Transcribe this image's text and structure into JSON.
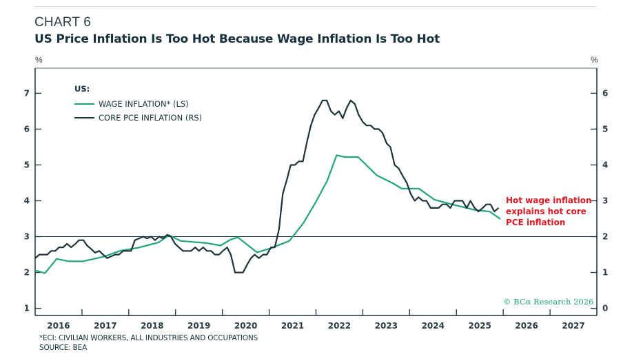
{
  "header": {
    "chart_number": "CHART 6",
    "title": "US Price Inflation Is Too Hot Because Wage Inflation Is Too Hot"
  },
  "axes": {
    "left_unit": "%",
    "right_unit": "%"
  },
  "footnotes": {
    "note": "*ECI: CIVILIAN WORKERS, ALL INDUSTRIES AND OCCUPATIONS",
    "source": "SOURCE: BEA"
  },
  "colors": {
    "wage": "#1fa47c",
    "core_pce": "#1b333b",
    "annotation": "#e4161f",
    "axis": "#16313b"
  },
  "chart_data": {
    "type": "line",
    "title": "US Price Inflation Is Too Hot Because Wage Inflation Is Too Hot",
    "xlabel": "",
    "ylabel_left": "%",
    "ylabel_right": "%",
    "xlim": [
      2016.0,
      2028.0
    ],
    "ylim_left": [
      0.8,
      7.7
    ],
    "ylim_right": [
      -0.2,
      6.7
    ],
    "yticks_left": [
      1,
      2,
      3,
      4,
      5,
      6,
      7
    ],
    "yticks_right": [
      0,
      1,
      2,
      3,
      4,
      5,
      6
    ],
    "xtick_labels": [
      "2016",
      "2017",
      "2018",
      "2019",
      "2020",
      "2021",
      "2022",
      "2023",
      "2024",
      "2025",
      "2026",
      "2027"
    ],
    "reference_line": {
      "axis": "left",
      "value": 3
    },
    "grid": false,
    "legend": {
      "title": "US:",
      "placement": "top-left",
      "entries": [
        "WAGE INFLATION* (LS)",
        "CORE PCE INFLATION (RS)"
      ]
    },
    "annotation": {
      "lines": [
        "Hot wage inflation",
        "explains hot core",
        "PCE inflation"
      ],
      "placement": "right-of-lines"
    },
    "copyright": "© BCα Research 2026",
    "series": [
      {
        "name": "WAGE INFLATION* (LS)",
        "axis": "left",
        "x": [
          2016.0,
          2016.21,
          2016.46,
          2016.72,
          2017.02,
          2017.46,
          2017.83,
          2018.2,
          2018.64,
          2018.86,
          2019.11,
          2019.67,
          2019.96,
          2020.18,
          2020.33,
          2020.74,
          2021.02,
          2021.43,
          2021.73,
          2021.99,
          2022.24,
          2022.44,
          2022.62,
          2022.9,
          2023.3,
          2023.64,
          2023.83,
          2024.2,
          2024.53,
          2024.97,
          2025.41,
          2025.71,
          2025.94
        ],
        "values": [
          2.06,
          1.98,
          2.38,
          2.31,
          2.31,
          2.44,
          2.61,
          2.69,
          2.84,
          3.04,
          2.88,
          2.82,
          2.75,
          2.92,
          2.98,
          2.56,
          2.67,
          2.88,
          3.38,
          3.95,
          4.56,
          5.27,
          5.22,
          5.22,
          4.71,
          4.49,
          4.34,
          4.34,
          4.03,
          3.88,
          3.74,
          3.7,
          3.49
        ]
      },
      {
        "name": "CORE PCE INFLATION (RS)",
        "axis": "right",
        "x": [
          2016.0,
          2016.09,
          2016.17,
          2016.26,
          2016.34,
          2016.43,
          2016.51,
          2016.6,
          2016.68,
          2016.77,
          2016.86,
          2016.94,
          2017.03,
          2017.11,
          2017.2,
          2017.28,
          2017.37,
          2017.45,
          2017.54,
          2017.62,
          2017.71,
          2017.79,
          2017.88,
          2017.96,
          2018.05,
          2018.13,
          2018.22,
          2018.31,
          2018.39,
          2018.48,
          2018.56,
          2018.65,
          2018.73,
          2018.82,
          2018.9,
          2018.99,
          2019.07,
          2019.16,
          2019.24,
          2019.33,
          2019.42,
          2019.5,
          2019.59,
          2019.67,
          2019.76,
          2019.84,
          2019.93,
          2020.01,
          2020.1,
          2020.18,
          2020.27,
          2020.35,
          2020.44,
          2020.52,
          2020.61,
          2020.69,
          2020.78,
          2020.87,
          2020.95,
          2021.04,
          2021.12,
          2021.21,
          2021.29,
          2021.38,
          2021.46,
          2021.55,
          2021.63,
          2021.72,
          2021.8,
          2021.89,
          2021.97,
          2022.06,
          2022.14,
          2022.23,
          2022.32,
          2022.4,
          2022.49,
          2022.57,
          2022.66,
          2022.74,
          2022.83,
          2022.91,
          2023.0,
          2023.08,
          2023.17,
          2023.25,
          2023.34,
          2023.42,
          2023.51,
          2023.59,
          2023.68,
          2023.77,
          2023.85,
          2023.94,
          2024.02,
          2024.11,
          2024.19,
          2024.28,
          2024.36,
          2024.45,
          2024.53,
          2024.62,
          2024.7,
          2024.79,
          2024.87,
          2024.96,
          2025.04,
          2025.13,
          2025.22,
          2025.3,
          2025.39,
          2025.47,
          2025.56,
          2025.64,
          2025.73,
          2025.81,
          2025.9
        ],
        "values": [
          1.4,
          1.5,
          1.5,
          1.5,
          1.6,
          1.6,
          1.7,
          1.7,
          1.8,
          1.7,
          1.8,
          1.9,
          1.9,
          1.75,
          1.65,
          1.55,
          1.6,
          1.5,
          1.4,
          1.45,
          1.5,
          1.5,
          1.6,
          1.6,
          1.6,
          1.9,
          1.95,
          2.0,
          1.95,
          2.0,
          1.9,
          2.0,
          1.95,
          2.05,
          2.0,
          1.8,
          1.7,
          1.6,
          1.6,
          1.6,
          1.7,
          1.6,
          1.7,
          1.6,
          1.6,
          1.5,
          1.5,
          1.6,
          1.7,
          1.5,
          1.0,
          1.0,
          1.0,
          1.2,
          1.4,
          1.5,
          1.4,
          1.5,
          1.5,
          1.7,
          1.7,
          2.2,
          3.2,
          3.6,
          4.0,
          4.0,
          4.1,
          4.1,
          4.6,
          5.1,
          5.4,
          5.6,
          5.8,
          5.8,
          5.5,
          5.4,
          5.5,
          5.3,
          5.6,
          5.8,
          5.7,
          5.4,
          5.2,
          5.1,
          5.1,
          5.0,
          5.0,
          4.9,
          4.6,
          4.5,
          4.0,
          3.9,
          3.7,
          3.5,
          3.2,
          3.0,
          3.1,
          3.0,
          3.0,
          2.8,
          2.8,
          2.8,
          2.9,
          2.9,
          2.8,
          3.0,
          3.0,
          3.0,
          2.8,
          3.0,
          2.8,
          2.7,
          2.8,
          2.9,
          2.9,
          2.7,
          2.8
        ]
      }
    ]
  }
}
